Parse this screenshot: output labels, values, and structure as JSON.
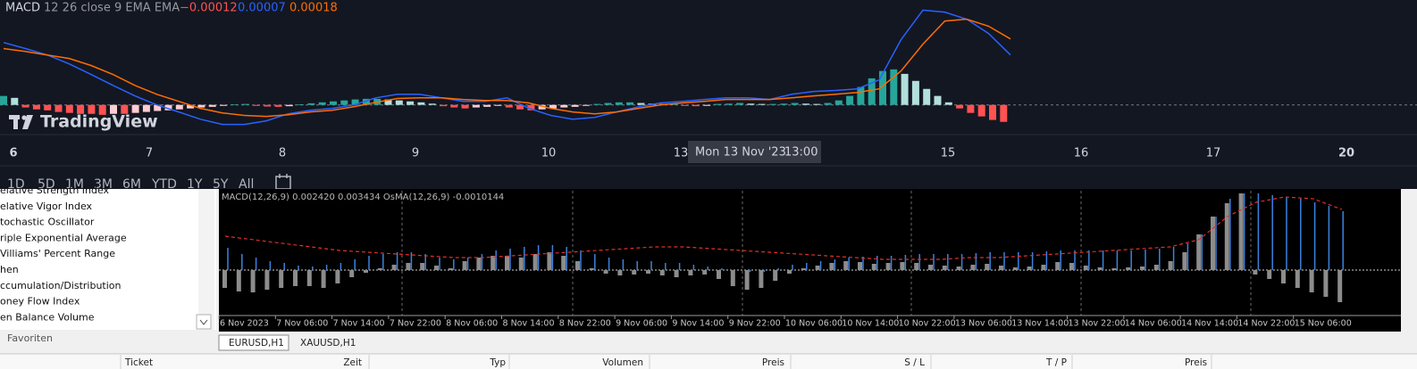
{
  "tradingview": {
    "legend": {
      "name": "MACD",
      "params": "12 26 close 9 EMA EMA",
      "histogram": "−0.00012",
      "macd": "0.00007",
      "signal": "0.00018"
    },
    "logo": "TradingView",
    "x_labels": [
      "6",
      "7",
      "8",
      "9",
      "10",
      "13",
      "15",
      "16",
      "17",
      "20"
    ],
    "crosshair": {
      "date": "Mon 13 Nov '23",
      "time": "13:00"
    },
    "ranges": [
      "1D",
      "5D",
      "1M",
      "3M",
      "6M",
      "YTD",
      "1Y",
      "5Y",
      "All"
    ],
    "chart_data": {
      "type": "macd",
      "ylim": [
        -0.0009,
        0.003
      ],
      "histogram": {
        "colors": {
          "up_rising": "#26a69a",
          "up_falling": "#b2dfdb",
          "down_falling": "#ff5252",
          "down_rising": "#ffcdd2"
        },
        "values": [
          0.00028,
          0.00022,
          -8e-05,
          -0.00014,
          -0.00017,
          -0.00022,
          -0.00025,
          -0.00028,
          -0.00028,
          -0.00031,
          -0.00028,
          -0.00028,
          -0.00025,
          -0.00022,
          -0.00019,
          -0.00017,
          -0.00014,
          -0.00011,
          -8e-05,
          -6e-05,
          -3e-05,
          2e-05,
          3e-05,
          -3e-05,
          -5e-05,
          -6e-05,
          -4e-05,
          2e-05,
          5e-05,
          8e-05,
          0.00011,
          0.00014,
          0.00017,
          0.00019,
          0.00019,
          0.00017,
          0.00014,
          0.00011,
          8e-05,
          4e-05,
          -4e-05,
          -8e-05,
          -0.00011,
          -8e-05,
          -6e-05,
          -3e-05,
          -8e-05,
          -0.00014,
          -0.00017,
          -0.00014,
          -0.00011,
          -8e-05,
          -6e-05,
          -3e-05,
          3e-05,
          6e-05,
          8e-05,
          8e-05,
          6e-05,
          4e-05,
          3e-05,
          3e-05,
          -3e-05,
          -4e-05,
          -3e-05,
          3e-05,
          4e-05,
          6e-05,
          4e-05,
          3e-05,
          3e-05,
          4e-05,
          6e-05,
          4e-05,
          3e-05,
          6e-05,
          0.00014,
          0.00028,
          0.00056,
          0.00083,
          0.00106,
          0.00111,
          0.00097,
          0.00075,
          0.0005,
          0.00028,
          8e-05,
          -0.00011,
          -0.00025,
          -0.00036,
          -0.00047,
          -0.00053
        ]
      },
      "macd_line": {
        "color": "#2962ff",
        "values": [
          0.00195,
          0.00176,
          0.00156,
          0.00128,
          0.00095,
          0.00061,
          0.00028,
          0,
          -0.00022,
          -0.00045,
          -0.00061,
          -0.00061,
          -0.0005,
          -0.00028,
          -0.00017,
          -0.00011,
          0,
          0.00022,
          0.00033,
          0.00033,
          0.00022,
          0.00011,
          0.00011,
          0.00022,
          -0.00011,
          -0.00033,
          -0.00045,
          -0.00039,
          -0.00022,
          -6e-05,
          6e-05,
          0.00011,
          0.00017,
          0.00022,
          0.00022,
          0.00017,
          0.00033,
          0.00042,
          0.00045,
          0.0005,
          0.00078,
          0.00204,
          0.00296,
          0.0029,
          0.00268,
          0.00223,
          0.00156
        ]
      },
      "signal_line": {
        "color": "#ff6d00",
        "values": [
          0.00176,
          0.00167,
          0.00156,
          0.00145,
          0.00123,
          0.00095,
          0.00061,
          0.00033,
          0.00011,
          -0.00011,
          -0.00025,
          -0.00033,
          -0.00036,
          -0.00031,
          -0.00022,
          -0.00017,
          -6e-05,
          8e-05,
          0.0002,
          0.00022,
          0.00022,
          0.00017,
          0.00014,
          0.00014,
          6e-05,
          -0.00011,
          -0.00022,
          -0.00028,
          -0.00022,
          -0.00011,
          0,
          6e-05,
          0.00011,
          0.00017,
          0.00017,
          0.00017,
          0.00022,
          0.00028,
          0.00033,
          0.00039,
          0.0005,
          0.00106,
          0.0019,
          0.00262,
          0.00268,
          0.00246,
          0.00206
        ]
      }
    }
  },
  "navigator": {
    "items": [
      "elative Strength Index",
      "elative Vigor Index",
      "tochastic Oscillator",
      "riple Exponential Average",
      "Villiams' Percent Range",
      "hen",
      "ccumulation/Distribution",
      "oney Flow Index",
      "en Balance Volume"
    ],
    "tab": "Favoriten"
  },
  "metatrader": {
    "header": "MACD(12,26,9) 0.002420 0.003434 OsMA(12,26,9) -0.0010144",
    "time_labels": [
      "6 Nov 2023",
      "7 Nov 06:00",
      "7 Nov 14:00",
      "7 Nov 22:00",
      "8 Nov 06:00",
      "8 Nov 14:00",
      "8 Nov 22:00",
      "9 Nov 06:00",
      "9 Nov 14:00",
      "9 Nov 22:00",
      "10 Nov 06:00",
      "10 Nov 14:00",
      "10 Nov 22:00",
      "13 Nov 06:00",
      "13 Nov 14:00",
      "13 Nov 22:00",
      "14 Nov 06:00",
      "14 Nov 14:00",
      "14 Nov 22:00",
      "15 Nov 06:00"
    ],
    "chart_data": {
      "type": "osma",
      "ylim": [
        -0.00196,
        0.00356
      ],
      "main": {
        "color": "#3a82e0",
        "values": [
          0.001,
          0.00072,
          0.00056,
          0.0004,
          0.00032,
          0.0002,
          0.00016,
          0.00024,
          0.00032,
          0.00048,
          0.00064,
          0.00072,
          0.0008,
          0.0008,
          0.00072,
          0.00056,
          0.00048,
          0.00056,
          0.00072,
          0.00088,
          0.00096,
          0.00104,
          0.00112,
          0.00112,
          0.00104,
          0.00088,
          0.00072,
          0.00056,
          0.00048,
          0.0004,
          0.0004,
          0.00032,
          0.00032,
          0.00024,
          0.00016,
          8e-05,
          0,
          -8e-05,
          -8e-05,
          8e-05,
          0.00024,
          0.00032,
          0.0004,
          0.00048,
          0.00056,
          0.0006,
          0.00064,
          0.00064,
          0.00068,
          0.00072,
          0.00072,
          0.00072,
          0.00072,
          0.00076,
          0.0008,
          0.0008,
          0.0008,
          0.0008,
          0.00084,
          0.00088,
          0.00088,
          0.00088,
          0.00088,
          0.00088,
          0.00088,
          0.00092,
          0.00096,
          0.00104,
          0.0012,
          0.0016,
          0.0024,
          0.0032,
          0.00344,
          0.00344,
          0.00336,
          0.00328,
          0.0032,
          0.00304,
          0.00288,
          0.00264
        ]
      },
      "osma": {
        "color": "#8c8c8c",
        "values": [
          -0.0008,
          -0.00096,
          -0.001,
          -0.00088,
          -0.0008,
          -0.00072,
          -0.00072,
          -0.0008,
          -0.0006,
          -0.00032,
          -0.00012,
          8e-05,
          0.00024,
          0.00032,
          0.00032,
          0.0002,
          8e-05,
          0.0004,
          0.00056,
          0.00064,
          0.00064,
          0.00056,
          0.00072,
          0.0008,
          0.00064,
          0.0004,
          8e-05,
          -0.00016,
          -0.00024,
          -0.0002,
          -0.00016,
          -0.00024,
          -0.00032,
          -0.00024,
          -0.0002,
          -0.0004,
          -0.00072,
          -0.00088,
          -0.0008,
          -0.00048,
          -0.00016,
          8e-05,
          0.0002,
          0.00032,
          0.0004,
          0.00036,
          0.00028,
          0.00032,
          0.00036,
          0.00032,
          0.00024,
          0.0002,
          0.00016,
          0.00024,
          0.00028,
          0.0002,
          0.00012,
          0.00016,
          0.00024,
          0.00036,
          0.00032,
          0.0002,
          0.00012,
          8e-05,
          0.00012,
          0.00016,
          0.00024,
          0.0004,
          0.0008,
          0.0016,
          0.0024,
          0.003,
          0.00344,
          -0.0002,
          -0.0004,
          -0.0006,
          -0.0008,
          -0.001,
          -0.0012,
          -0.00144
        ]
      },
      "signal": {
        "color": "#e0302a",
        "values": [
          0.00152,
          0.00136,
          0.0012,
          0.00104,
          0.00088,
          0.0008,
          0.00072,
          0.00064,
          0.00056,
          0.00056,
          0.00064,
          0.00072,
          0.0008,
          0.00088,
          0.00096,
          0.00104,
          0.00104,
          0.00096,
          0.00088,
          0.0008,
          0.00072,
          0.00064,
          0.00056,
          0.00048,
          0.00048,
          0.00048,
          0.00056,
          0.00056,
          0.00064,
          0.00072,
          0.0008,
          0.00088,
          0.00096,
          0.00104,
          0.00136,
          0.0024,
          0.00304,
          0.00328,
          0.0032,
          0.00272
        ]
      }
    }
  },
  "symbol_tabs": [
    "EURUSD,H1",
    "XAUUSD,H1"
  ],
  "trade_columns": [
    "Ticket",
    "Zeit",
    "Typ",
    "Volumen",
    "Preis",
    "S / L",
    "T / P",
    "Preis"
  ]
}
